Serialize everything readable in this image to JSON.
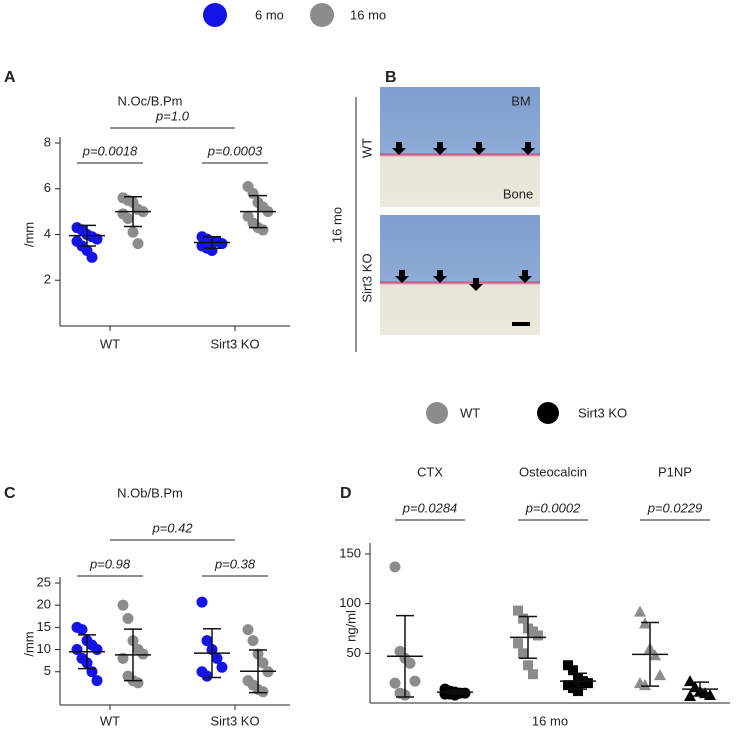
{
  "panel_b": {
    "panel": "B",
    "group": "16 mo",
    "rows": [
      "WT",
      "Sirt3 KO"
    ],
    "top": "BM",
    "bottom": "Bone"
  },
  "chart_data": [
    {
      "type": "dotplot",
      "panel": "A",
      "title": "N.Oc/B.Pm",
      "ylabel": "/mm",
      "ylim": [
        0,
        8
      ],
      "yticks": [
        2,
        4,
        6,
        8
      ],
      "categories": [
        "WT",
        "Sirt3 KO"
      ],
      "series": [
        {
          "name": "6 mo",
          "color": "#1414e6",
          "values": [
            [
              4.3,
              4.2,
              4.0,
              3.9,
              3.8,
              3.7,
              3.5,
              3.3,
              3.0
            ],
            [
              3.9,
              3.8,
              3.7,
              3.7,
              3.6,
              3.5,
              3.4,
              3.3
            ]
          ],
          "mean": [
            3.95,
            3.65
          ],
          "sd": [
            0.45,
            0.25
          ]
        },
        {
          "name": "16 mo",
          "color": "#8c8c8c",
          "values": [
            [
              5.6,
              5.5,
              5.4,
              5.1,
              5.0,
              4.9,
              4.7,
              4.1,
              3.6
            ],
            [
              6.1,
              5.8,
              5.4,
              5.2,
              5.0,
              4.8,
              4.5,
              4.3,
              4.2
            ]
          ],
          "mean": [
            5.0,
            5.0
          ],
          "sd": [
            0.65,
            0.7
          ]
        }
      ],
      "comparisons": {
        "within": [
          "p=0.0018",
          "p=0.0003"
        ],
        "across": "p=1.0"
      }
    },
    {
      "type": "dotplot",
      "panel": "C",
      "title": "N.Ob/B.Pm",
      "ylabel": "/mm",
      "ylim": [
        -2.5,
        25
      ],
      "yticks": [
        5,
        10,
        15,
        20,
        25
      ],
      "categories": [
        "WT",
        "Sirt3 KO"
      ],
      "series": [
        {
          "color": "#1414e6",
          "values": [
            [
              15,
              14.5,
              12,
              11,
              10,
              10,
              8,
              7,
              5,
              3
            ],
            [
              20.7,
              12,
              10,
              8,
              6,
              5,
              4
            ]
          ],
          "mean": [
            9.5,
            9.2
          ],
          "sd": [
            3.8,
            5.5
          ]
        },
        {
          "color": "#8c8c8c",
          "values": [
            [
              20,
              17,
              12,
              10,
              9,
              8,
              4,
              3,
              2.5
            ],
            [
              14.5,
              12,
              9,
              7,
              5,
              3,
              2,
              1,
              0.5
            ]
          ],
          "mean": [
            8.8,
            5.1
          ],
          "sd": [
            5.8,
            4.8
          ]
        }
      ],
      "comparisons": {
        "within": [
          "p=0.98",
          "p=0.38"
        ],
        "across": "p=0.42"
      }
    },
    {
      "type": "dotplot",
      "panel": "D",
      "ylabel": "ng/ml",
      "xlabel": "16 mo",
      "ylim": [
        0,
        155
      ],
      "yticks": [
        50,
        100,
        150
      ],
      "categories": [
        "CTX",
        "Osteocalcin",
        "P1NP"
      ],
      "markers": [
        "circle",
        "square",
        "triangle"
      ],
      "series": [
        {
          "name": "WT",
          "color": "#8c8c8c",
          "values": [
            [
              137,
              52,
              45,
              40,
              22,
              20,
              10,
              8
            ],
            [
              93,
              85,
              75,
              72,
              68,
              60,
              50,
              38,
              29
            ],
            [
              92,
              80,
              55,
              48,
              28,
              20,
              18
            ]
          ],
          "mean": [
            47,
            66,
            49
          ],
          "sd": [
            41,
            21,
            32
          ]
        },
        {
          "name": "Sirt3 KO",
          "color": "#000000",
          "values": [
            [
              14,
              12,
              11,
              10,
              10,
              9,
              9,
              8
            ],
            [
              38,
              33,
              25,
              22,
              20,
              18,
              15,
              12
            ],
            [
              22,
              16,
              12,
              10,
              8,
              7
            ]
          ],
          "mean": [
            11,
            22,
            14
          ],
          "sd": [
            2,
            8,
            7
          ]
        }
      ],
      "comparisons": {
        "within": [
          "p=0.0284",
          "p=0.0002",
          "p=0.0229"
        ]
      }
    }
  ]
}
